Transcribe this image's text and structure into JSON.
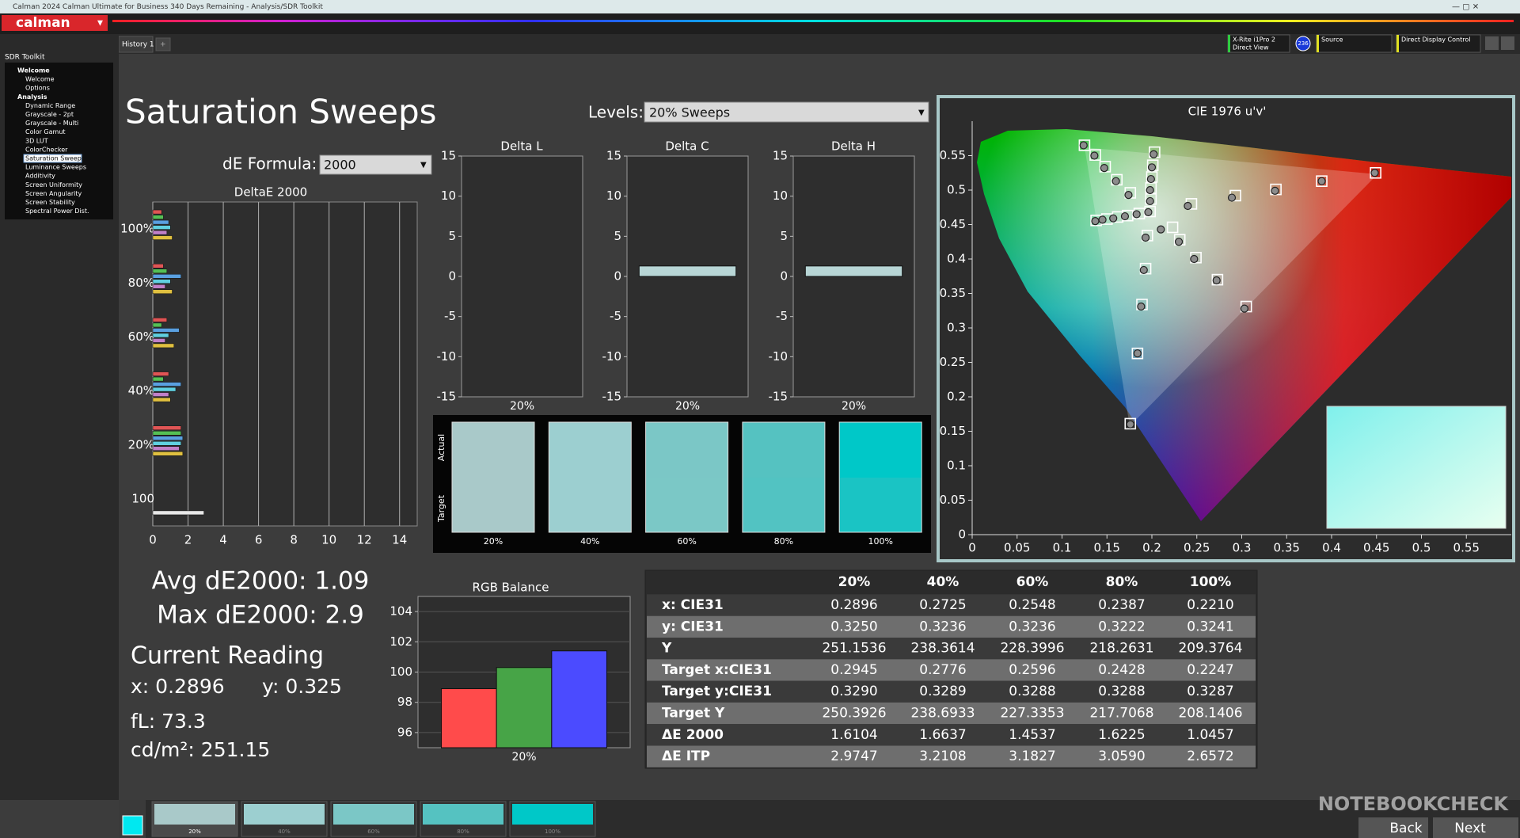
{
  "window": {
    "title": "Calman 2024 Calman Ultimate for Business 340 Days Remaining - Analysis/SDR Toolkit",
    "app": "calman"
  },
  "tabs": [
    "History 1",
    "+"
  ],
  "toolbar": {
    "meter": "X-Rite i1Pro 2",
    "meter_mode": "Direct View",
    "meter_badge": "236",
    "source": "Source",
    "display": "Direct Display Control"
  },
  "sidebar": {
    "title": "SDR Toolkit",
    "items": [
      {
        "label": "Welcome",
        "level": 1
      },
      {
        "label": "Welcome",
        "level": 2
      },
      {
        "label": "Options",
        "level": 2
      },
      {
        "label": "Analysis",
        "level": 1
      },
      {
        "label": "Dynamic Range",
        "level": 2
      },
      {
        "label": "Grayscale - 2pt",
        "level": 2
      },
      {
        "label": "Grayscale - Multi",
        "level": 2
      },
      {
        "label": "Color Gamut",
        "level": 2
      },
      {
        "label": "3D LUT",
        "level": 2
      },
      {
        "label": "ColorChecker",
        "level": 2
      },
      {
        "label": "Saturation Sweeps",
        "level": 2,
        "selected": true
      },
      {
        "label": "Luminance Sweeps",
        "level": 2
      },
      {
        "label": "Additivity",
        "level": 2
      },
      {
        "label": "Screen Uniformity",
        "level": 2
      },
      {
        "label": "Screen Angularity",
        "level": 2
      },
      {
        "label": "Screen Stability",
        "level": 2
      },
      {
        "label": "Spectral Power Dist.",
        "level": 2
      }
    ]
  },
  "page": {
    "title": "Saturation Sweeps",
    "levels_label": "Levels:",
    "levels_value": "20% Sweeps",
    "formula_label": "dE Formula:",
    "formula_value": "2000"
  },
  "summary": {
    "avg": "Avg dE2000: 1.09",
    "max": "Max dE2000: 2.9",
    "reading_title": "Current Reading",
    "x": "x: 0.2896",
    "y": "y: 0.325",
    "fl": "fL: 73.3",
    "cdm2": "cd/m²: 251.15"
  },
  "swatches": {
    "actual_label": "Actual",
    "target_label": "Target",
    "items": [
      {
        "label": "20%",
        "actual": "#a9c9c9",
        "target": "#a9c9c9"
      },
      {
        "label": "40%",
        "actual": "#9ccfd0",
        "target": "#9ccfd0"
      },
      {
        "label": "60%",
        "actual": "#7bc7c6",
        "target": "#7bc8c6"
      },
      {
        "label": "80%",
        "actual": "#55c2c1",
        "target": "#52c3c2"
      },
      {
        "label": "100%",
        "actual": "#00c8c8",
        "target": "#1ac4c4"
      }
    ]
  },
  "table": {
    "header": [
      "20%",
      "40%",
      "60%",
      "80%",
      "100%"
    ],
    "rows": [
      [
        "x: CIE31",
        "0.2896",
        "0.2725",
        "0.2548",
        "0.2387",
        "0.2210"
      ],
      [
        "y: CIE31",
        "0.3250",
        "0.3236",
        "0.3236",
        "0.3222",
        "0.3241"
      ],
      [
        "Y",
        "251.1536",
        "238.3614",
        "228.3996",
        "218.2631",
        "209.3764"
      ],
      [
        "Target x:CIE31",
        "0.2945",
        "0.2776",
        "0.2596",
        "0.2428",
        "0.2247"
      ],
      [
        "Target y:CIE31",
        "0.3290",
        "0.3289",
        "0.3288",
        "0.3288",
        "0.3287"
      ],
      [
        "Target Y",
        "250.3926",
        "238.6933",
        "227.3353",
        "217.7068",
        "208.1406"
      ],
      [
        "ΔE 2000",
        "1.6104",
        "1.6637",
        "1.4537",
        "1.6225",
        "1.0457"
      ],
      [
        "ΔE ITP",
        "2.9747",
        "3.2108",
        "3.1827",
        "3.0590",
        "2.6572"
      ]
    ]
  },
  "footer": {
    "thumbs": [
      "20%",
      "40%",
      "60%",
      "80%",
      "100%"
    ],
    "back": "Back",
    "next": "Next",
    "watermark": "NOTEBOOKCHECK"
  },
  "chart_data": [
    {
      "type": "hbar",
      "title": "DeltaE 2000",
      "categories": [
        "100%",
        "80%",
        "60%",
        "40%",
        "20%",
        "100"
      ],
      "series": [
        {
          "color": "#e05555",
          "values": [
            0.5,
            0.6,
            0.8,
            0.9,
            1.6,
            null
          ]
        },
        {
          "color": "#55c055",
          "values": [
            0.6,
            0.8,
            0.5,
            0.6,
            1.6,
            null
          ]
        },
        {
          "color": "#5aa0e0",
          "values": [
            0.9,
            1.6,
            1.5,
            1.6,
            1.7,
            null
          ]
        },
        {
          "color": "#60d0e0",
          "values": [
            1.0,
            1.0,
            0.9,
            1.3,
            1.6,
            null
          ]
        },
        {
          "color": "#c080c8",
          "values": [
            0.8,
            0.7,
            0.7,
            0.9,
            1.5,
            null
          ]
        },
        {
          "color": "#e0c040",
          "values": [
            1.1,
            1.1,
            1.2,
            1.0,
            1.7,
            null
          ]
        },
        {
          "color": "#e8e8e8",
          "values": [
            null,
            null,
            null,
            null,
            null,
            2.9
          ]
        }
      ],
      "xlim": [
        0,
        15
      ],
      "xticks": [
        0,
        2,
        4,
        6,
        8,
        10,
        12,
        14
      ],
      "grid": true
    },
    {
      "type": "bar",
      "title": "Delta L",
      "categories": [
        "20%"
      ],
      "values": [
        0
      ],
      "color": "#b8d6d6",
      "ylim": [
        -15,
        15
      ],
      "yticks": [
        15,
        10,
        5,
        0,
        -5,
        -10,
        -15
      ]
    },
    {
      "type": "bar",
      "title": "Delta C",
      "categories": [
        "20%"
      ],
      "values": [
        1.3
      ],
      "color": "#b8d6d6",
      "ylim": [
        -15,
        15
      ],
      "yticks": [
        15,
        10,
        5,
        0,
        -5,
        -10,
        -15
      ]
    },
    {
      "type": "bar",
      "title": "Delta H",
      "categories": [
        "20%"
      ],
      "values": [
        1.3
      ],
      "color": "#b8d6d6",
      "ylim": [
        -15,
        15
      ],
      "yticks": [
        15,
        10,
        5,
        0,
        -5,
        -10,
        -15
      ]
    },
    {
      "type": "bar",
      "title": "RGB Balance",
      "categories": [
        "20%"
      ],
      "series": [
        {
          "color": "#ff4b4b",
          "values": [
            98.9
          ]
        },
        {
          "color": "#47a447",
          "values": [
            100.3
          ]
        },
        {
          "color": "#4b4bff",
          "values": [
            101.4
          ]
        }
      ],
      "ylim": [
        95,
        105
      ],
      "yticks": [
        96,
        98,
        100,
        102,
        104
      ],
      "grid": true
    },
    {
      "type": "scatter",
      "title": "CIE 1976 u'v'",
      "xlim": [
        0,
        0.6
      ],
      "ylim": [
        0,
        0.6
      ],
      "xticks": [
        0,
        0.05,
        0.1,
        0.15,
        0.2,
        0.25,
        0.3,
        0.35,
        0.4,
        0.45,
        0.5,
        0.55
      ],
      "yticks": [
        0,
        0.05,
        0.1,
        0.15,
        0.2,
        0.25,
        0.3,
        0.35,
        0.4,
        0.45,
        0.5,
        0.55
      ],
      "series": [
        {
          "marker": "square",
          "color": "#ffffff",
          "x": [
            0.198,
            0.244,
            0.293,
            0.338,
            0.389,
            0.449,
            0.176,
            0.161,
            0.148,
            0.137,
            0.125,
            0.195,
            0.193,
            0.189,
            0.184,
            0.176,
            0.186,
            0.173,
            0.162,
            0.15,
            0.138,
            0.223,
            0.231,
            0.249,
            0.273,
            0.305,
            0.199,
            0.199,
            0.2,
            0.201,
            0.203
          ],
          "y": [
            0.469,
            0.48,
            0.492,
            0.501,
            0.513,
            0.525,
            0.496,
            0.515,
            0.534,
            0.551,
            0.565,
            0.434,
            0.386,
            0.334,
            0.263,
            0.161,
            0.466,
            0.463,
            0.461,
            0.458,
            0.456,
            0.446,
            0.428,
            0.402,
            0.37,
            0.331,
            0.487,
            0.503,
            0.519,
            0.536,
            0.555
          ]
        },
        {
          "marker": "circle",
          "color": "#8c8c8c",
          "x": [
            0.196,
            0.24,
            0.289,
            0.337,
            0.389,
            0.448,
            0.174,
            0.16,
            0.147,
            0.136,
            0.124,
            0.193,
            0.191,
            0.188,
            0.184,
            0.176,
            0.183,
            0.17,
            0.157,
            0.145,
            0.137,
            0.21,
            0.23,
            0.247,
            0.272,
            0.303,
            0.198,
            0.198,
            0.199,
            0.2,
            0.202
          ],
          "y": [
            0.468,
            0.477,
            0.489,
            0.499,
            0.513,
            0.525,
            0.493,
            0.513,
            0.532,
            0.55,
            0.565,
            0.431,
            0.384,
            0.331,
            0.263,
            0.16,
            0.465,
            0.462,
            0.459,
            0.457,
            0.455,
            0.443,
            0.425,
            0.4,
            0.369,
            0.328,
            0.484,
            0.5,
            0.516,
            0.533,
            0.552
          ]
        }
      ]
    }
  ]
}
